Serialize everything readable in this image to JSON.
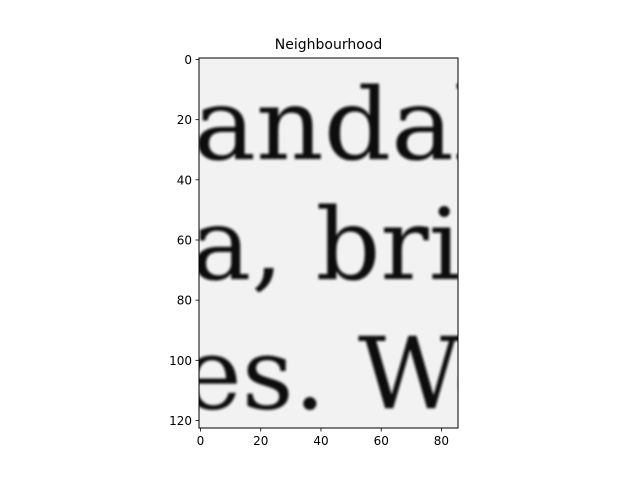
{
  "chart_data": {
    "type": "image",
    "title": "Neighbourhood",
    "xlabel": "",
    "ylabel": "",
    "image_width": 86,
    "image_height": 123,
    "xlim": [
      -0.5,
      85.5
    ],
    "ylim": [
      122.5,
      -0.5
    ],
    "x_ticks": [
      0,
      20,
      40,
      60,
      80
    ],
    "y_ticks": [
      0,
      20,
      40,
      60,
      80,
      100,
      120
    ],
    "grid": false,
    "colormap": "gray",
    "image_text_lines": [
      {
        "text": "andal",
        "baseline_row": 33
      },
      {
        "text": "a, brin",
        "baseline_row": 73
      },
      {
        "text": "es. We",
        "baseline_row": 116
      }
    ]
  }
}
